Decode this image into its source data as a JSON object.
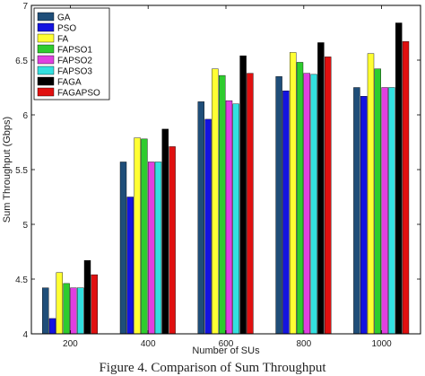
{
  "chart_data": {
    "type": "bar",
    "title": "",
    "xlabel": "Number of SUs",
    "ylabel": "Sum Throughput (Gbps)",
    "categories": [
      "200",
      "400",
      "600",
      "800",
      "1000"
    ],
    "ylim": [
      4,
      7
    ],
    "yticks": [
      "4",
      "4.5",
      "5",
      "5.5",
      "6",
      "6.5",
      "7"
    ],
    "legend_position": "top-left",
    "grid": false,
    "series": [
      {
        "name": "GA",
        "color": "#1f4e79",
        "values": [
          4.42,
          5.57,
          6.12,
          6.35,
          6.25
        ]
      },
      {
        "name": "PSO",
        "color": "#1414e0",
        "values": [
          4.14,
          5.25,
          5.96,
          6.22,
          6.17
        ]
      },
      {
        "name": "FA",
        "color": "#ffff33",
        "values": [
          4.56,
          5.79,
          6.42,
          6.57,
          6.56
        ]
      },
      {
        "name": "FAPSO1",
        "color": "#2ecc2e",
        "values": [
          4.46,
          5.78,
          6.36,
          6.48,
          6.42
        ]
      },
      {
        "name": "FAPSO2",
        "color": "#e040e0",
        "values": [
          4.42,
          5.57,
          6.13,
          6.38,
          6.25
        ]
      },
      {
        "name": "FAPSO3",
        "color": "#33e0e0",
        "values": [
          4.42,
          5.57,
          6.1,
          6.37,
          6.25
        ]
      },
      {
        "name": "FAGA",
        "color": "#000000",
        "values": [
          4.67,
          5.87,
          6.54,
          6.66,
          6.84
        ]
      },
      {
        "name": "FAGAPSO",
        "color": "#e01010",
        "values": [
          4.54,
          5.71,
          6.38,
          6.53,
          6.67
        ]
      }
    ]
  },
  "caption": "Figure 4. Comparison of Sum Throughput"
}
